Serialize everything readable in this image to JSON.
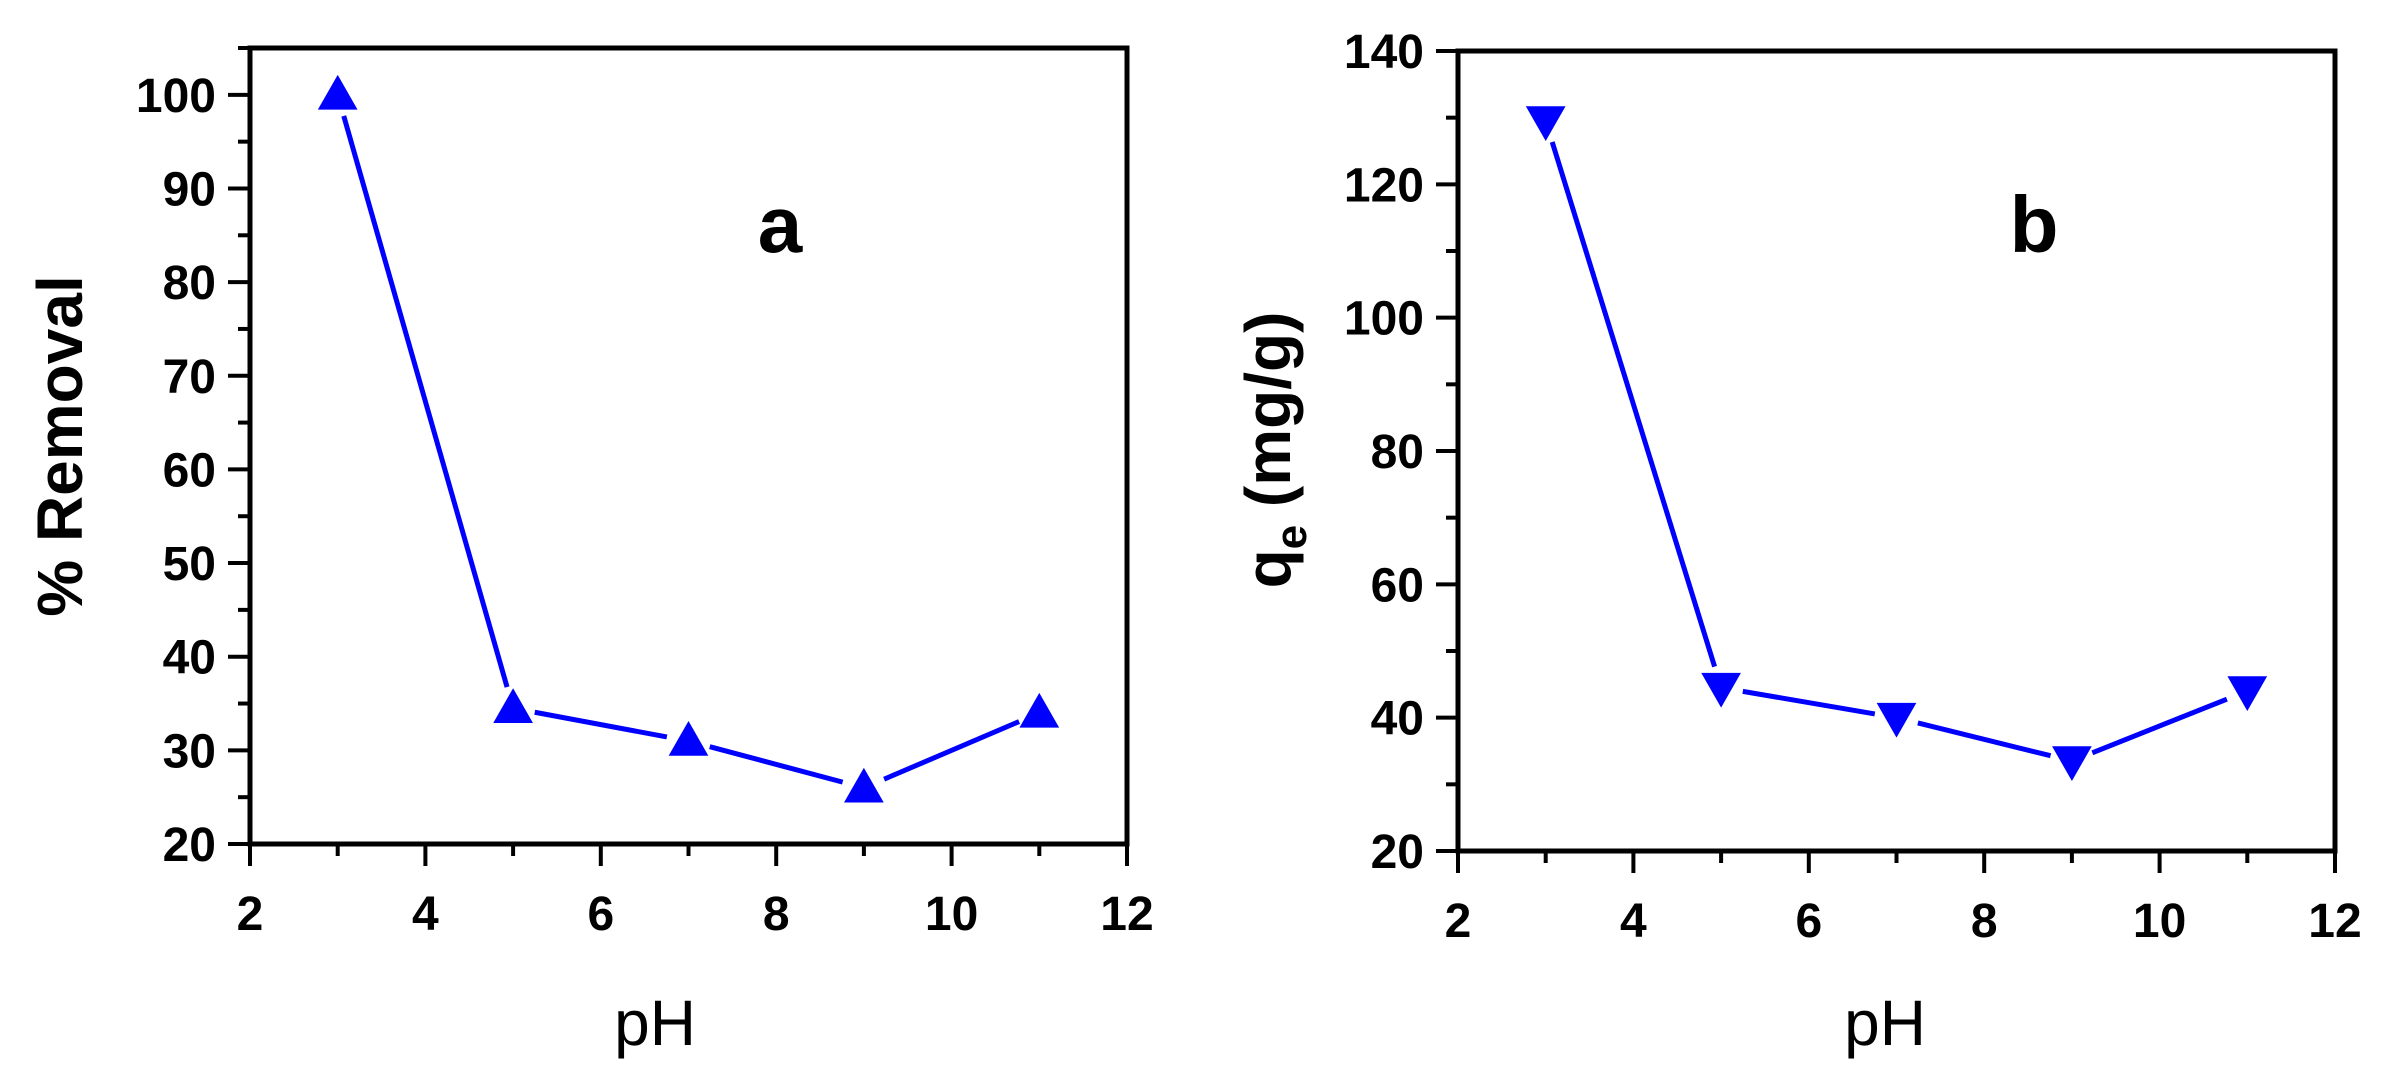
{
  "chart_data": [
    {
      "type": "line",
      "panel_label": "a",
      "xlabel": "pH",
      "ylabel": "% Removal",
      "xlim": [
        2,
        12
      ],
      "ylim": [
        20,
        105
      ],
      "xticks": [
        2,
        4,
        6,
        8,
        10,
        12
      ],
      "yticks": [
        20,
        30,
        40,
        50,
        60,
        70,
        80,
        90,
        100
      ],
      "marker": "triangle-up",
      "color": "#0000ff",
      "series": [
        {
          "x": [
            3,
            5,
            7,
            9,
            11
          ],
          "values": [
            100,
            34.5,
            31,
            26,
            34
          ]
        }
      ],
      "grid": false
    },
    {
      "type": "line",
      "panel_label": "b",
      "xlabel": "pH",
      "ylabel": "q",
      "ylabel_sub": "e",
      "ylabel_unit": " (mg/g)",
      "xlim": [
        2,
        12
      ],
      "ylim": [
        20,
        140
      ],
      "xticks": [
        2,
        4,
        6,
        8,
        10,
        12
      ],
      "yticks": [
        20,
        40,
        60,
        80,
        100,
        120,
        140
      ],
      "marker": "triangle-down",
      "color": "#0000ff",
      "series": [
        {
          "x": [
            3,
            5,
            7,
            9,
            11
          ],
          "values": [
            129.5,
            44.5,
            40,
            33.5,
            44
          ]
        }
      ],
      "grid": false
    }
  ]
}
